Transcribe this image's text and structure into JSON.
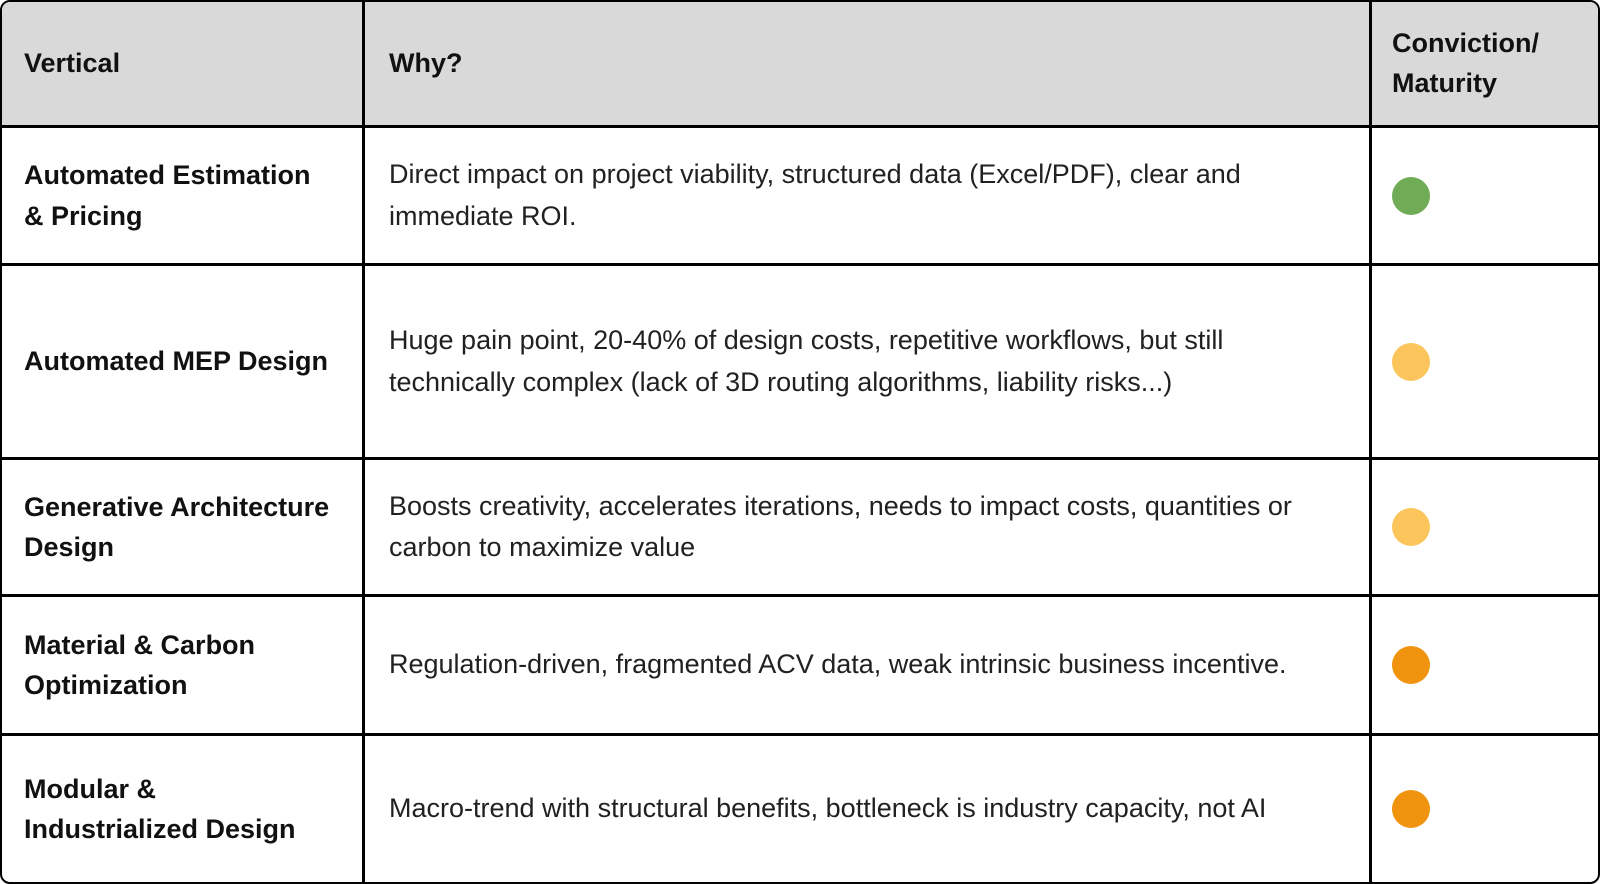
{
  "header": {
    "vertical": "Vertical",
    "why": "Why?",
    "conviction_lines": [
      "Conviction/",
      "Maturity"
    ]
  },
  "colors": {
    "header_bg": "#D9D9D9",
    "border": "#000000",
    "green": "#6FAC55",
    "yellow": "#FBC55C",
    "orange": "#F0930E"
  },
  "rows": [
    {
      "vertical": "Automated Estimation & Pricing",
      "why": "Direct impact on project viability, structured data (Excel/PDF), clear and immediate ROI.",
      "conviction": "green"
    },
    {
      "vertical": "Automated MEP Design",
      "why": "Huge pain point, 20-40% of design costs, repetitive workflows, but still technically complex (lack of 3D routing algorithms, liability risks...)",
      "conviction": "yellow"
    },
    {
      "vertical": "Generative Architecture Design",
      "why": "Boosts creativity, accelerates iterations, needs to impact costs, quantities or carbon to maximize value",
      "conviction": "yellow"
    },
    {
      "vertical": "Material & Carbon Optimization",
      "why": "Regulation-driven, fragmented ACV data, weak intrinsic business incentive.",
      "conviction": "orange"
    },
    {
      "vertical": "Modular & Industrialized Design",
      "why": "Macro-trend with structural benefits, bottleneck is industry capacity, not AI",
      "conviction": "orange"
    }
  ]
}
